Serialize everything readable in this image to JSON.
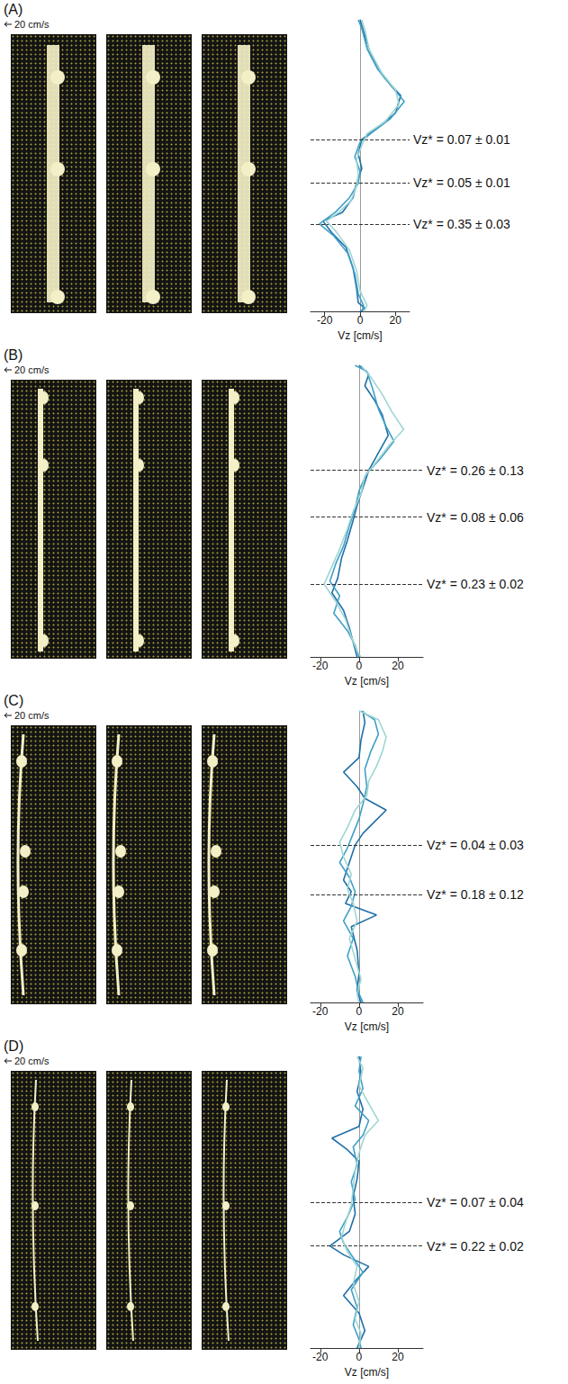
{
  "chart_data": [
    {
      "type": "line",
      "title": "(A)",
      "scale_label": "20 cm/s",
      "x_label": "Vz [cm/s]",
      "xlim": [
        -28,
        28
      ],
      "xticks": [
        -20,
        0,
        20
      ],
      "ylim": [
        0,
        100
      ],
      "tick_labels": "x",
      "annotations": [
        {
          "text": "Vz* = 0.07 ± 0.01",
          "y": 59
        },
        {
          "text": "Vz* = 0.05 ± 0.01",
          "y": 44
        },
        {
          "text": "Vz* = 0.35 ± 0.03",
          "y": 30
        }
      ],
      "series": [
        {
          "color": "#1f6fa8",
          "values": [
            [
              0,
              100
            ],
            [
              2,
              96
            ],
            [
              6,
              88
            ],
            [
              14,
              80
            ],
            [
              23,
              74
            ],
            [
              20,
              68
            ],
            [
              10,
              63
            ],
            [
              1,
              59
            ],
            [
              -1,
              54
            ],
            [
              1,
              49
            ],
            [
              -2,
              44
            ],
            [
              -4,
              39
            ],
            [
              -10,
              34
            ],
            [
              -21,
              31
            ],
            [
              -16,
              27
            ],
            [
              -8,
              22
            ],
            [
              -4,
              15
            ],
            [
              -2,
              8
            ],
            [
              -1,
              3
            ],
            [
              3,
              1
            ],
            [
              0,
              0
            ]
          ]
        },
        {
          "color": "#3fa0c8",
          "values": [
            [
              -1,
              100
            ],
            [
              1,
              97
            ],
            [
              4,
              90
            ],
            [
              10,
              83
            ],
            [
              18,
              77
            ],
            [
              25,
              72
            ],
            [
              17,
              66
            ],
            [
              6,
              61
            ],
            [
              0,
              58
            ],
            [
              -3,
              53
            ],
            [
              0,
              48
            ],
            [
              -1,
              44
            ],
            [
              -6,
              39
            ],
            [
              -14,
              34
            ],
            [
              -23,
              30
            ],
            [
              -15,
              26
            ],
            [
              -7,
              20
            ],
            [
              -3,
              13
            ],
            [
              -1,
              6
            ],
            [
              2,
              2
            ],
            [
              1,
              0
            ]
          ]
        },
        {
          "color": "#9fd6d2",
          "values": [
            [
              1,
              100
            ],
            [
              3,
              96
            ],
            [
              5,
              90
            ],
            [
              12,
              82
            ],
            [
              20,
              76
            ],
            [
              22,
              71
            ],
            [
              14,
              65
            ],
            [
              4,
              61
            ],
            [
              1,
              57
            ],
            [
              -2,
              52
            ],
            [
              -1,
              47
            ],
            [
              -2,
              43
            ],
            [
              -5,
              38
            ],
            [
              -12,
              34
            ],
            [
              -19,
              31
            ],
            [
              -13,
              27
            ],
            [
              -6,
              21
            ],
            [
              -2,
              14
            ],
            [
              0,
              7
            ],
            [
              4,
              2
            ],
            [
              2,
              0
            ]
          ]
        }
      ]
    },
    {
      "type": "line",
      "title": "(B)",
      "scale_label": "20 cm/s",
      "x_label": "Vz [cm/s]",
      "xlim": [
        -25,
        33
      ],
      "xticks": [
        -20,
        0,
        20
      ],
      "ylim": [
        0,
        100
      ],
      "tick_labels": "x",
      "annotations": [
        {
          "text": "Vz* = 0.26 ± 0.13",
          "y": 64
        },
        {
          "text": "Vz* = 0.08 ± 0.06",
          "y": 48
        },
        {
          "text": "Vz* = 0.23 ± 0.02",
          "y": 25
        }
      ],
      "series": [
        {
          "color": "#1f6fa8",
          "values": [
            [
              0,
              100
            ],
            [
              5,
              97
            ],
            [
              3,
              93
            ],
            [
              8,
              88
            ],
            [
              12,
              83
            ],
            [
              15,
              76
            ],
            [
              10,
              70
            ],
            [
              5,
              64
            ],
            [
              2,
              58
            ],
            [
              -1,
              52
            ],
            [
              -3,
              47
            ],
            [
              -6,
              40
            ],
            [
              -9,
              34
            ],
            [
              -11,
              27
            ],
            [
              -14,
              22
            ],
            [
              -8,
              16
            ],
            [
              -5,
              10
            ],
            [
              -3,
              5
            ],
            [
              -1,
              0
            ]
          ]
        },
        {
          "color": "#3fa0c8",
          "values": [
            [
              -2,
              100
            ],
            [
              4,
              98
            ],
            [
              7,
              92
            ],
            [
              10,
              85
            ],
            [
              14,
              79
            ],
            [
              18,
              74
            ],
            [
              11,
              68
            ],
            [
              4,
              63
            ],
            [
              0,
              57
            ],
            [
              -2,
              51
            ],
            [
              -5,
              45
            ],
            [
              -8,
              38
            ],
            [
              -12,
              32
            ],
            [
              -15,
              26
            ],
            [
              -10,
              21
            ],
            [
              -13,
              15
            ],
            [
              -6,
              9
            ],
            [
              -2,
              4
            ],
            [
              0,
              0
            ]
          ]
        },
        {
          "color": "#9fd6d2",
          "values": [
            [
              1,
              100
            ],
            [
              6,
              96
            ],
            [
              12,
              90
            ],
            [
              17,
              84
            ],
            [
              23,
              78
            ],
            [
              16,
              73
            ],
            [
              9,
              67
            ],
            [
              3,
              62
            ],
            [
              1,
              56
            ],
            [
              -3,
              50
            ],
            [
              -6,
              44
            ],
            [
              -10,
              37
            ],
            [
              -14,
              31
            ],
            [
              -18,
              25
            ],
            [
              -12,
              19
            ],
            [
              -7,
              13
            ],
            [
              -4,
              7
            ],
            [
              -1,
              2
            ],
            [
              1,
              0
            ]
          ]
        }
      ]
    },
    {
      "type": "line",
      "title": "(C)",
      "scale_label": "20 cm/s",
      "x_label": "Vz [cm/s]",
      "xlim": [
        -25,
        33
      ],
      "xticks": [
        -20,
        0,
        20
      ],
      "ylim": [
        0,
        100
      ],
      "tick_labels": "x",
      "annotations": [
        {
          "text": "Vz* = 0.04 ± 0.03",
          "y": 54
        },
        {
          "text": "Vz* = 0.18 ± 0.12",
          "y": 37
        }
      ],
      "series": [
        {
          "color": "#1f6fa8",
          "values": [
            [
              2,
              100
            ],
            [
              3,
              96
            ],
            [
              1,
              90
            ],
            [
              0,
              84
            ],
            [
              -8,
              79
            ],
            [
              -1,
              74
            ],
            [
              3,
              70
            ],
            [
              14,
              66
            ],
            [
              8,
              62
            ],
            [
              2,
              58
            ],
            [
              -2,
              54
            ],
            [
              -5,
              48
            ],
            [
              -8,
              42
            ],
            [
              -4,
              38
            ],
            [
              -7,
              34
            ],
            [
              9,
              30
            ],
            [
              -4,
              26
            ],
            [
              -1,
              18
            ],
            [
              0,
              10
            ],
            [
              -1,
              4
            ],
            [
              1,
              0
            ]
          ]
        },
        {
          "color": "#3fa0c8",
          "values": [
            [
              1,
              100
            ],
            [
              8,
              97
            ],
            [
              10,
              92
            ],
            [
              6,
              86
            ],
            [
              3,
              80
            ],
            [
              4,
              74
            ],
            [
              2,
              68
            ],
            [
              0,
              63
            ],
            [
              -3,
              58
            ],
            [
              -6,
              53
            ],
            [
              -10,
              48
            ],
            [
              -5,
              43
            ],
            [
              -2,
              38
            ],
            [
              -4,
              33
            ],
            [
              -8,
              28
            ],
            [
              -3,
              22
            ],
            [
              -6,
              16
            ],
            [
              -2,
              9
            ],
            [
              0,
              3
            ],
            [
              2,
              0
            ]
          ]
        },
        {
          "color": "#9fd6d2",
          "values": [
            [
              0,
              100
            ],
            [
              10,
              97
            ],
            [
              14,
              91
            ],
            [
              12,
              86
            ],
            [
              9,
              81
            ],
            [
              5,
              76
            ],
            [
              4,
              71
            ],
            [
              -2,
              66
            ],
            [
              -6,
              60
            ],
            [
              -10,
              55
            ],
            [
              -8,
              50
            ],
            [
              -4,
              44
            ],
            [
              -6,
              39
            ],
            [
              -3,
              34
            ],
            [
              -1,
              28
            ],
            [
              -5,
              22
            ],
            [
              -2,
              15
            ],
            [
              1,
              8
            ],
            [
              -1,
              3
            ],
            [
              0,
              0
            ]
          ]
        }
      ]
    },
    {
      "type": "line",
      "title": "(D)",
      "scale_label": "20 cm/s",
      "x_label": "Vz [cm/s]",
      "xlim": [
        -25,
        33
      ],
      "xticks": [
        -20,
        0,
        20
      ],
      "ylim": [
        0,
        100
      ],
      "tick_labels": "x",
      "annotations": [
        {
          "text": "Vz* = 0.07 ± 0.04",
          "y": 50
        },
        {
          "text": "Vz* = 0.22 ± 0.02",
          "y": 35
        }
      ],
      "series": [
        {
          "color": "#1f6fa8",
          "values": [
            [
              0,
              100
            ],
            [
              1,
              94
            ],
            [
              -1,
              88
            ],
            [
              2,
              82
            ],
            [
              0,
              76
            ],
            [
              -14,
              72
            ],
            [
              -6,
              68
            ],
            [
              0,
              64
            ],
            [
              -1,
              58
            ],
            [
              -3,
              52
            ],
            [
              -2,
              46
            ],
            [
              -5,
              40
            ],
            [
              -15,
              35
            ],
            [
              -8,
              32
            ],
            [
              5,
              28
            ],
            [
              -2,
              23
            ],
            [
              -8,
              18
            ],
            [
              0,
              12
            ],
            [
              3,
              6
            ],
            [
              -1,
              0
            ]
          ]
        },
        {
          "color": "#3fa0c8",
          "values": [
            [
              1,
              100
            ],
            [
              0,
              95
            ],
            [
              2,
              89
            ],
            [
              -2,
              83
            ],
            [
              5,
              78
            ],
            [
              2,
              73
            ],
            [
              -3,
              69
            ],
            [
              -1,
              63
            ],
            [
              -4,
              57
            ],
            [
              -2,
              51
            ],
            [
              -6,
              45
            ],
            [
              -10,
              40
            ],
            [
              -8,
              36
            ],
            [
              -3,
              31
            ],
            [
              2,
              26
            ],
            [
              -4,
              20
            ],
            [
              -1,
              14
            ],
            [
              -3,
              8
            ],
            [
              0,
              3
            ],
            [
              1,
              0
            ]
          ]
        },
        {
          "color": "#9fd6d2",
          "values": [
            [
              -1,
              100
            ],
            [
              2,
              96
            ],
            [
              0,
              90
            ],
            [
              4,
              85
            ],
            [
              10,
              78
            ],
            [
              3,
              73
            ],
            [
              0,
              67
            ],
            [
              -2,
              61
            ],
            [
              -3,
              55
            ],
            [
              -4,
              49
            ],
            [
              -7,
              43
            ],
            [
              -9,
              38
            ],
            [
              -6,
              33
            ],
            [
              -1,
              28
            ],
            [
              -3,
              22
            ],
            [
              0,
              16
            ],
            [
              -2,
              10
            ],
            [
              1,
              5
            ],
            [
              0,
              0
            ]
          ]
        }
      ]
    }
  ]
}
